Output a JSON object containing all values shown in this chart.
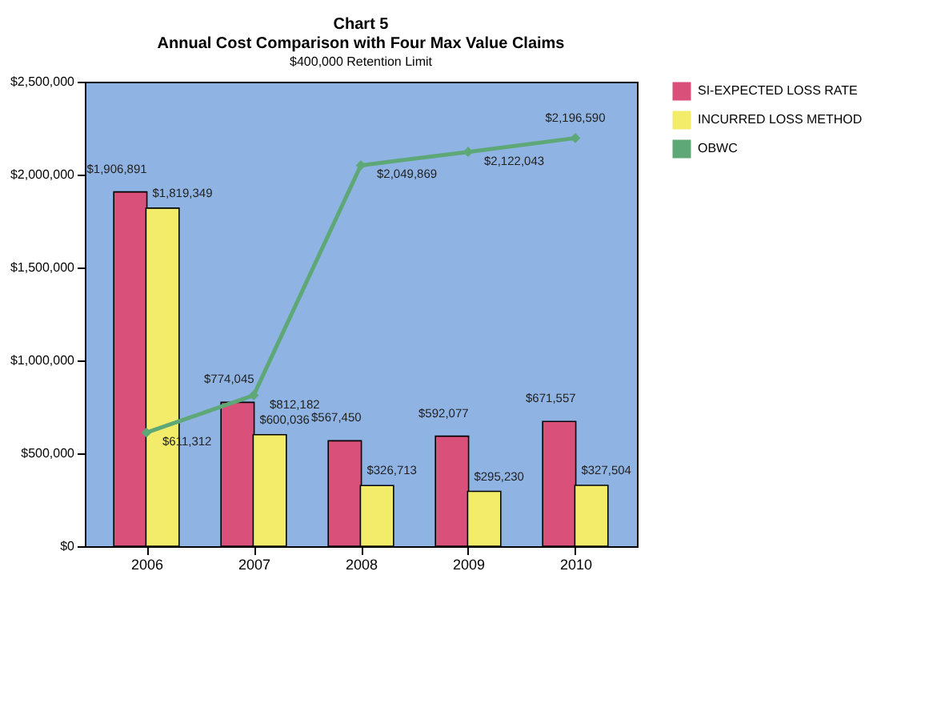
{
  "chart_data": {
    "type": "bar",
    "title": "Annual Cost Comparison with Four Max Value Claims",
    "subtitle": "$400,000 Retention Limit",
    "annotations": [
      "Chart 5"
    ],
    "categories": [
      "2006",
      "2007",
      "2008",
      "2009",
      "2010"
    ],
    "series": [
      {
        "name": "SI-EXPECTED LOSS RATE",
        "color": "#d9507a",
        "values": [
          1906891,
          774045,
          567450,
          592077,
          671557
        ],
        "value_labels": [
          "$1,906,891",
          "$774,045",
          "$567,450",
          "$592,077",
          "$671,557"
        ]
      },
      {
        "name": "INCURRED LOSS METHOD",
        "color": "#f3ec6a",
        "values": [
          1819349,
          600036,
          326713,
          295230,
          327504
        ],
        "value_labels": [
          "$1,819,349",
          "$600,036",
          "$326,713",
          "$295,230",
          "$327,504"
        ]
      },
      {
        "name": "OBWC",
        "type": "line",
        "marker": "diamond",
        "color": "#5ea878",
        "values": [
          611312,
          812182,
          2049869,
          2122043,
          2196590
        ],
        "value_labels": [
          "$611,312",
          "$812,182",
          "$2,049,869",
          "$2,122,043",
          "$2,196,590"
        ]
      }
    ],
    "ylim": [
      0,
      2500000
    ],
    "yticks": [
      {
        "value": 0,
        "label": "$0"
      },
      {
        "value": 500000,
        "label": "$500,000"
      },
      {
        "value": 1000000,
        "label": "$1,000,000"
      },
      {
        "value": 1500000,
        "label": "$1,500,000"
      },
      {
        "value": 2000000,
        "label": "$2,000,000"
      },
      {
        "value": 2500000,
        "label": "$2,500,000"
      }
    ],
    "grid": false,
    "legend": "right"
  }
}
